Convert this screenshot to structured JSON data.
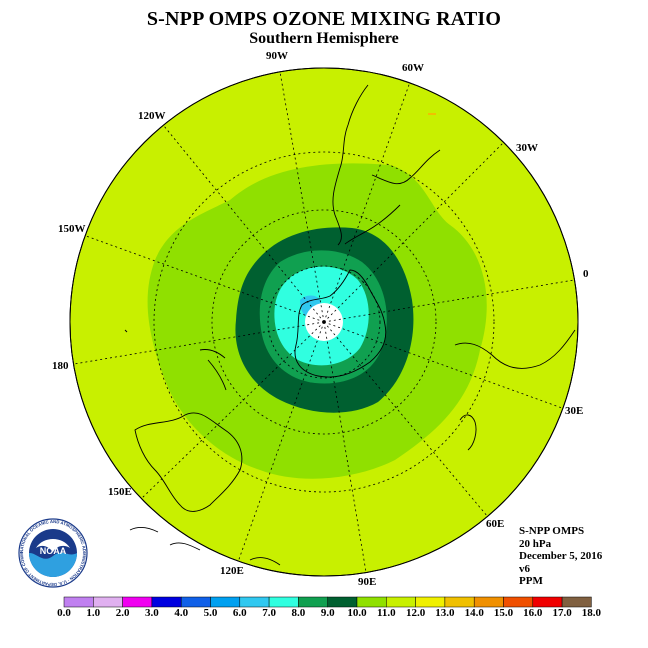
{
  "title": "S-NPP OMPS OZONE MIXING RATIO",
  "subtitle": "Southern Hemisphere",
  "longitude_labels": [
    "90W",
    "60W",
    "30W",
    "0",
    "30E",
    "60E",
    "90E",
    "120E",
    "150E",
    "180",
    "150W",
    "120W"
  ],
  "info": {
    "instrument": "S-NPP OMPS",
    "level": "20 hPa",
    "date": "December 5, 2016",
    "version": "v6",
    "units": "PPM"
  },
  "logo": {
    "text": "NOAA",
    "ring_text": "NATIONAL OCEANIC AND ATMOSPHERIC ADMINISTRATION · U.S. DEPARTMENT OF COMMERCE"
  },
  "legend": {
    "ticks": [
      "0.0",
      "1.0",
      "2.0",
      "3.0",
      "4.0",
      "5.0",
      "6.0",
      "7.0",
      "8.0",
      "9.0",
      "10.0",
      "11.0",
      "12.0",
      "13.0",
      "14.0",
      "15.0",
      "16.0",
      "17.0",
      "18.0"
    ],
    "colors": [
      "#c080f0",
      "#e0b0f0",
      "#f000f0",
      "#0000e0",
      "#1060e8",
      "#00a0f0",
      "#30c8f0",
      "#30ffe0",
      "#10a050",
      "#006030",
      "#90e000",
      "#c8f000",
      "#f0f000",
      "#f0c000",
      "#f09000",
      "#f05000",
      "#f00000",
      "#806040"
    ]
  },
  "colors": {
    "ocean_high": "#c8f000",
    "ring_11": "#90e000",
    "ring_10": "#006030",
    "ring_9": "#10a050",
    "ring_8": "#30ffe0",
    "low": "#30c8f0",
    "pole": "#ffffff"
  }
}
